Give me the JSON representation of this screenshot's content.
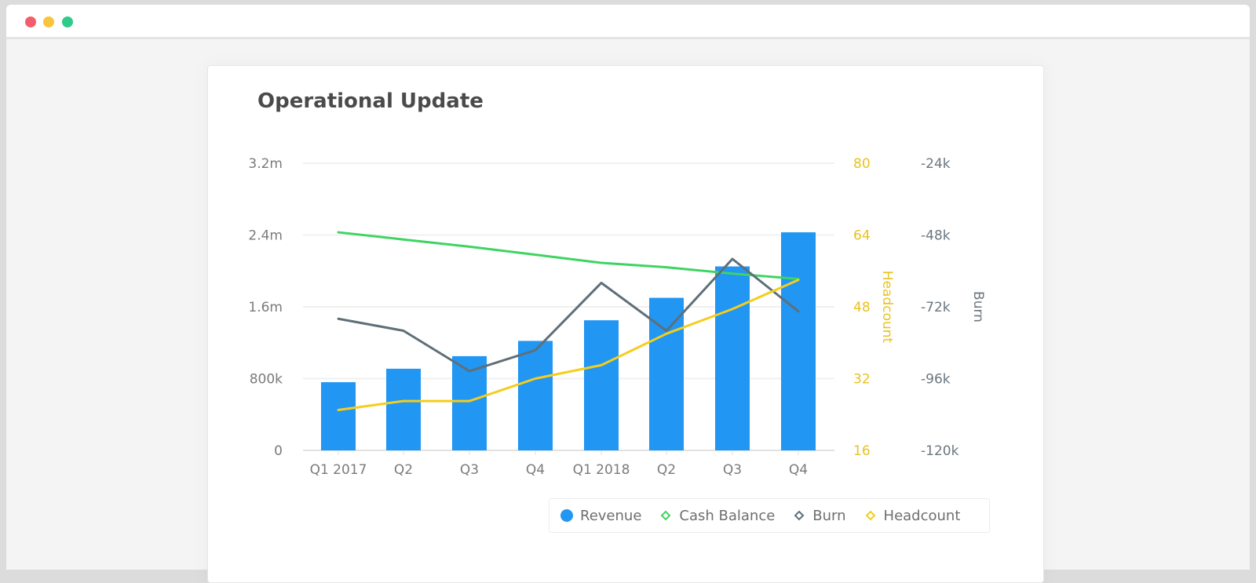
{
  "window": {
    "controls": [
      "close",
      "minimize",
      "maximize"
    ],
    "colors": {
      "close": "#f25f6b",
      "minimize": "#f8c43a",
      "maximize": "#2fcb8a"
    }
  },
  "card": {
    "title": "Operational Update"
  },
  "legend": {
    "items": [
      {
        "label": "Revenue",
        "icon": "filled-circle-icon",
        "color": "#2196f3"
      },
      {
        "label": "Cash Balance",
        "icon": "diamond-outline-icon",
        "color": "#3fd462"
      },
      {
        "label": "Burn",
        "icon": "diamond-outline-icon",
        "color": "#5f6f78"
      },
      {
        "label": "Headcount",
        "icon": "diamond-outline-icon",
        "color": "#f5cd1c"
      }
    ]
  },
  "axes": {
    "left": {
      "ticks": [
        "3.2m",
        "2.4m",
        "1.6m",
        "800k",
        "0"
      ]
    },
    "headcount": {
      "label": "Headcount",
      "ticks": [
        "80",
        "64",
        "48",
        "32",
        "16"
      ]
    },
    "burn": {
      "label": "Burn",
      "ticks": [
        "-24k",
        "-48k",
        "-72k",
        "-96k",
        "-120k"
      ]
    },
    "x": {
      "ticks": [
        "Q1 2017",
        "Q2",
        "Q3",
        "Q4",
        "Q1 2018",
        "Q2",
        "Q3",
        "Q4"
      ]
    }
  },
  "chart_data": {
    "type": "bar",
    "title": "Operational Update",
    "categories": [
      "Q1 2017",
      "Q2",
      "Q3",
      "Q4",
      "Q1 2018",
      "Q2",
      "Q3",
      "Q4"
    ],
    "series": [
      {
        "name": "Revenue",
        "type": "bar",
        "axis": "left",
        "color": "#2196f3",
        "values": [
          760000,
          910000,
          1050000,
          1220000,
          1450000,
          1700000,
          2050000,
          2430000
        ]
      },
      {
        "name": "Cash Balance",
        "type": "line",
        "axis": "left",
        "color": "#3fd462",
        "values": [
          2430000,
          2350000,
          2270000,
          2180000,
          2090000,
          2040000,
          1970000,
          1910000
        ]
      },
      {
        "name": "Burn",
        "type": "line",
        "axis": "burn",
        "color": "#5f6f78",
        "values": [
          -76000,
          -80000,
          -93500,
          -86500,
          -64000,
          -80000,
          -56000,
          -73500
        ]
      },
      {
        "name": "Headcount",
        "type": "line",
        "axis": "headcount",
        "color": "#f5cd1c",
        "values": [
          25,
          27,
          27,
          32,
          35,
          42,
          47.5,
          54
        ]
      }
    ],
    "xlabel": "",
    "ylabel": "",
    "ylim": [
      0,
      3200000
    ],
    "y2": {
      "label": "Headcount",
      "ylim": [
        16,
        80
      ]
    },
    "y3": {
      "label": "Burn",
      "ylim": [
        -120000,
        -24000
      ]
    },
    "grid": true,
    "legend_position": "bottom-right"
  }
}
